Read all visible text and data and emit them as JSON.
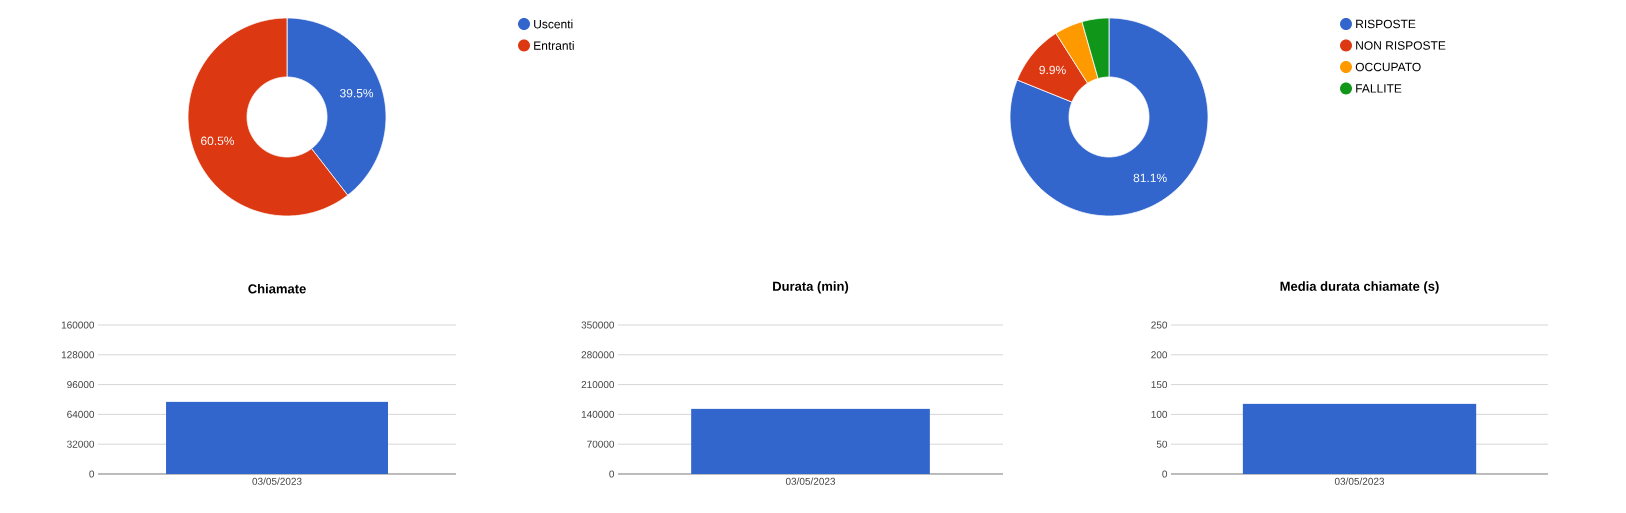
{
  "chart_data": [
    {
      "type": "donut",
      "categories": [
        "Uscenti",
        "Entranti"
      ],
      "values": [
        39.5,
        60.5
      ],
      "colors": [
        "#3366cc",
        "#dc3912"
      ],
      "value_labels": [
        "39.5%",
        "60.5%"
      ],
      "legend": "right"
    },
    {
      "type": "donut",
      "categories": [
        "RISPOSTE",
        "NON RISPOSTE",
        "OCCUPATO",
        "FALLITE"
      ],
      "values": [
        81.1,
        9.9,
        4.6,
        4.4
      ],
      "colors": [
        "#3366cc",
        "#dc3912",
        "#ff9900",
        "#109618"
      ],
      "value_labels": [
        "81.1%",
        "9.9%",
        null,
        null
      ],
      "legend": "right"
    },
    {
      "type": "bar",
      "title": "Chiamate",
      "categories": [
        "03/05/2023"
      ],
      "values": [
        77500
      ],
      "color": "#3366cc",
      "ylim": [
        0,
        160000
      ],
      "yticks": [
        0,
        32000,
        64000,
        96000,
        128000,
        160000
      ],
      "grid": "y"
    },
    {
      "type": "bar",
      "title": "Durata (min)",
      "categories": [
        "03/05/2023"
      ],
      "values": [
        153000
      ],
      "color": "#3366cc",
      "ylim": [
        0,
        350000
      ],
      "yticks": [
        0,
        70000,
        140000,
        210000,
        280000,
        350000
      ],
      "grid": "y"
    },
    {
      "type": "bar",
      "title": "Media durata chiamate (s)",
      "categories": [
        "03/05/2023"
      ],
      "values": [
        118
      ],
      "color": "#3366cc",
      "ylim": [
        0,
        250
      ],
      "yticks": [
        0,
        50,
        100,
        150,
        200,
        250
      ],
      "grid": "y"
    }
  ]
}
